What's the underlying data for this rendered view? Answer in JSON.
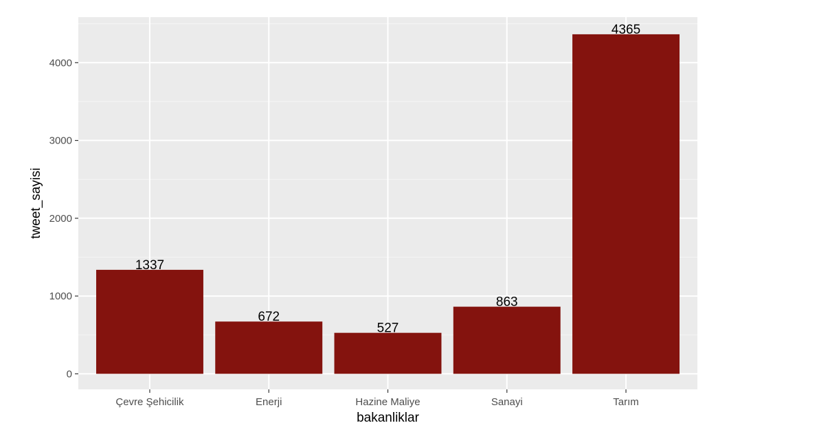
{
  "chart_data": {
    "type": "bar",
    "title": "",
    "xlabel": "bakanliklar",
    "ylabel": "tweet_sayisi",
    "categories": [
      "Çevre Şehicilik",
      "Enerji",
      "Hazine Maliye",
      "Sanayi",
      "Tarım"
    ],
    "values": [
      1337,
      672,
      527,
      863,
      4365
    ],
    "data_labels": [
      "1337",
      "672",
      "527",
      "863",
      "4365"
    ],
    "y_ticks": [
      0,
      1000,
      2000,
      3000,
      4000
    ],
    "y_tick_labels": [
      "0",
      "1000",
      "2000",
      "3000",
      "4000"
    ],
    "ylim": [
      -200,
      4585
    ],
    "grid": true,
    "legend": "none",
    "colors": {
      "bar": "#84130e",
      "panel_background": "#ebebeb",
      "grid_major": "#ffffff",
      "grid_minor": "#f5f5f5",
      "tick_text": "#4d4d4d"
    }
  }
}
